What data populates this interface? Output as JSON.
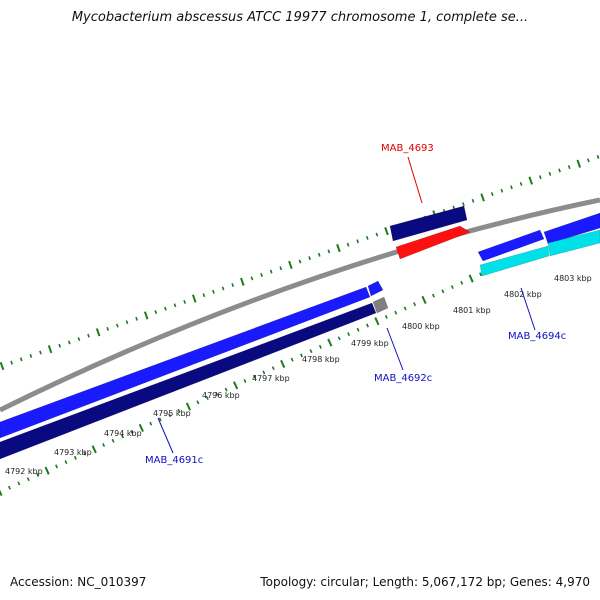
{
  "title": "Mycobacterium abscessus ATCC 19977 chromosome 1, complete se...",
  "footer": {
    "accession": "Accession: NC_010397",
    "summary": "Topology: circular; Length: 5,067,172 bp; Genes: 4,970"
  },
  "colors": {
    "backbone": "#8c8c8c",
    "tick": "#1e7a1e",
    "label_blue": "#1010c0",
    "label_red": "#e00000",
    "gene_blue": "#1a1aff",
    "gene_navy": "#0a0a80",
    "gene_red": "#ff1010",
    "gene_cyan": "#00e0e8",
    "gene_gray": "#808080"
  },
  "kbp_labels": [
    "4792 kbp",
    "4793 kbp",
    "4794 kbp",
    "4795 kbp",
    "4796 kbp",
    "4797 kbp",
    "4798 kbp",
    "4799 kbp",
    "4800 kbp",
    "4801 kbp",
    "4802 kbp",
    "4803 kbp"
  ],
  "gene_labels": [
    {
      "text": "MAB_4691c",
      "color": "label_blue"
    },
    {
      "text": "MAB_4692c",
      "color": "label_blue"
    },
    {
      "text": "MAB_4693",
      "color": "label_red"
    },
    {
      "text": "MAB_4694c",
      "color": "label_blue"
    }
  ]
}
